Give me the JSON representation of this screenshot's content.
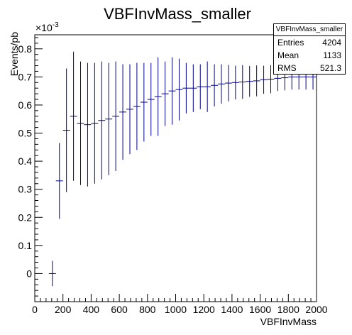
{
  "chart_data": {
    "type": "scatter",
    "title": "VBFInvMass_smaller",
    "xlabel": "VBFInvMass",
    "ylabel": "Events/pb",
    "y_exponent_label": "×10",
    "y_exponent_power": "-3",
    "xlim": [
      0,
      2000
    ],
    "ylim": [
      -0.1,
      0.85
    ],
    "x_ticks": [
      "0",
      "200",
      "400",
      "600",
      "800",
      "1000",
      "1200",
      "1400",
      "1600",
      "1800",
      "2000"
    ],
    "y_ticks": [
      "0",
      "0.1",
      "0.2",
      "0.3",
      "0.4",
      "0.5",
      "0.6",
      "0.7",
      "0.8"
    ],
    "bin_width": 50,
    "series": [
      {
        "color": "#00008b",
        "points": [
          {
            "x": 125,
            "y": 0.0,
            "err": 0.045
          },
          {
            "x": 175,
            "y": 0.33,
            "err": 0.135
          },
          {
            "x": 225,
            "y": 0.51,
            "err": 0.22
          },
          {
            "x": 275,
            "y": 0.56,
            "err": 0.23
          },
          {
            "x": 325,
            "y": 0.535,
            "err": 0.22
          },
          {
            "x": 375,
            "y": 0.53,
            "err": 0.22
          },
          {
            "x": 425,
            "y": 0.535,
            "err": 0.215
          },
          {
            "x": 475,
            "y": 0.545,
            "err": 0.21
          },
          {
            "x": 525,
            "y": 0.55,
            "err": 0.2
          },
          {
            "x": 575,
            "y": 0.56,
            "err": 0.195
          },
          {
            "x": 625,
            "y": 0.575,
            "err": 0.17
          },
          {
            "x": 675,
            "y": 0.585,
            "err": 0.16
          },
          {
            "x": 725,
            "y": 0.595,
            "err": 0.155
          },
          {
            "x": 775,
            "y": 0.61,
            "err": 0.14
          },
          {
            "x": 825,
            "y": 0.62,
            "err": 0.13
          },
          {
            "x": 875,
            "y": 0.63,
            "err": 0.14
          },
          {
            "x": 925,
            "y": 0.64,
            "err": 0.115
          },
          {
            "x": 975,
            "y": 0.65,
            "err": 0.12
          },
          {
            "x": 1025,
            "y": 0.655,
            "err": 0.11
          },
          {
            "x": 1075,
            "y": 0.66,
            "err": 0.09
          },
          {
            "x": 1125,
            "y": 0.66,
            "err": 0.085
          },
          {
            "x": 1175,
            "y": 0.665,
            "err": 0.08
          },
          {
            "x": 1225,
            "y": 0.665,
            "err": 0.09
          },
          {
            "x": 1275,
            "y": 0.67,
            "err": 0.075
          },
          {
            "x": 1325,
            "y": 0.675,
            "err": 0.07
          },
          {
            "x": 1375,
            "y": 0.678,
            "err": 0.065
          },
          {
            "x": 1425,
            "y": 0.68,
            "err": 0.06
          },
          {
            "x": 1475,
            "y": 0.682,
            "err": 0.06
          },
          {
            "x": 1525,
            "y": 0.684,
            "err": 0.055
          },
          {
            "x": 1575,
            "y": 0.686,
            "err": 0.055
          },
          {
            "x": 1625,
            "y": 0.69,
            "err": 0.05
          },
          {
            "x": 1675,
            "y": 0.692,
            "err": 0.05
          },
          {
            "x": 1725,
            "y": 0.695,
            "err": 0.045
          },
          {
            "x": 1775,
            "y": 0.697,
            "err": 0.045
          },
          {
            "x": 1825,
            "y": 0.7,
            "err": 0.045
          },
          {
            "x": 1875,
            "y": 0.7,
            "err": 0.045
          },
          {
            "x": 1925,
            "y": 0.7,
            "err": 0.045
          },
          {
            "x": 1975,
            "y": 0.7,
            "err": 0.045
          }
        ]
      }
    ],
    "stats": {
      "title": "VBFInvMass_smaller",
      "rows": [
        {
          "label": "Entries",
          "value": "4204"
        },
        {
          "label": "Mean",
          "value": "1133"
        },
        {
          "label": "RMS",
          "value": "521.3"
        }
      ]
    }
  }
}
